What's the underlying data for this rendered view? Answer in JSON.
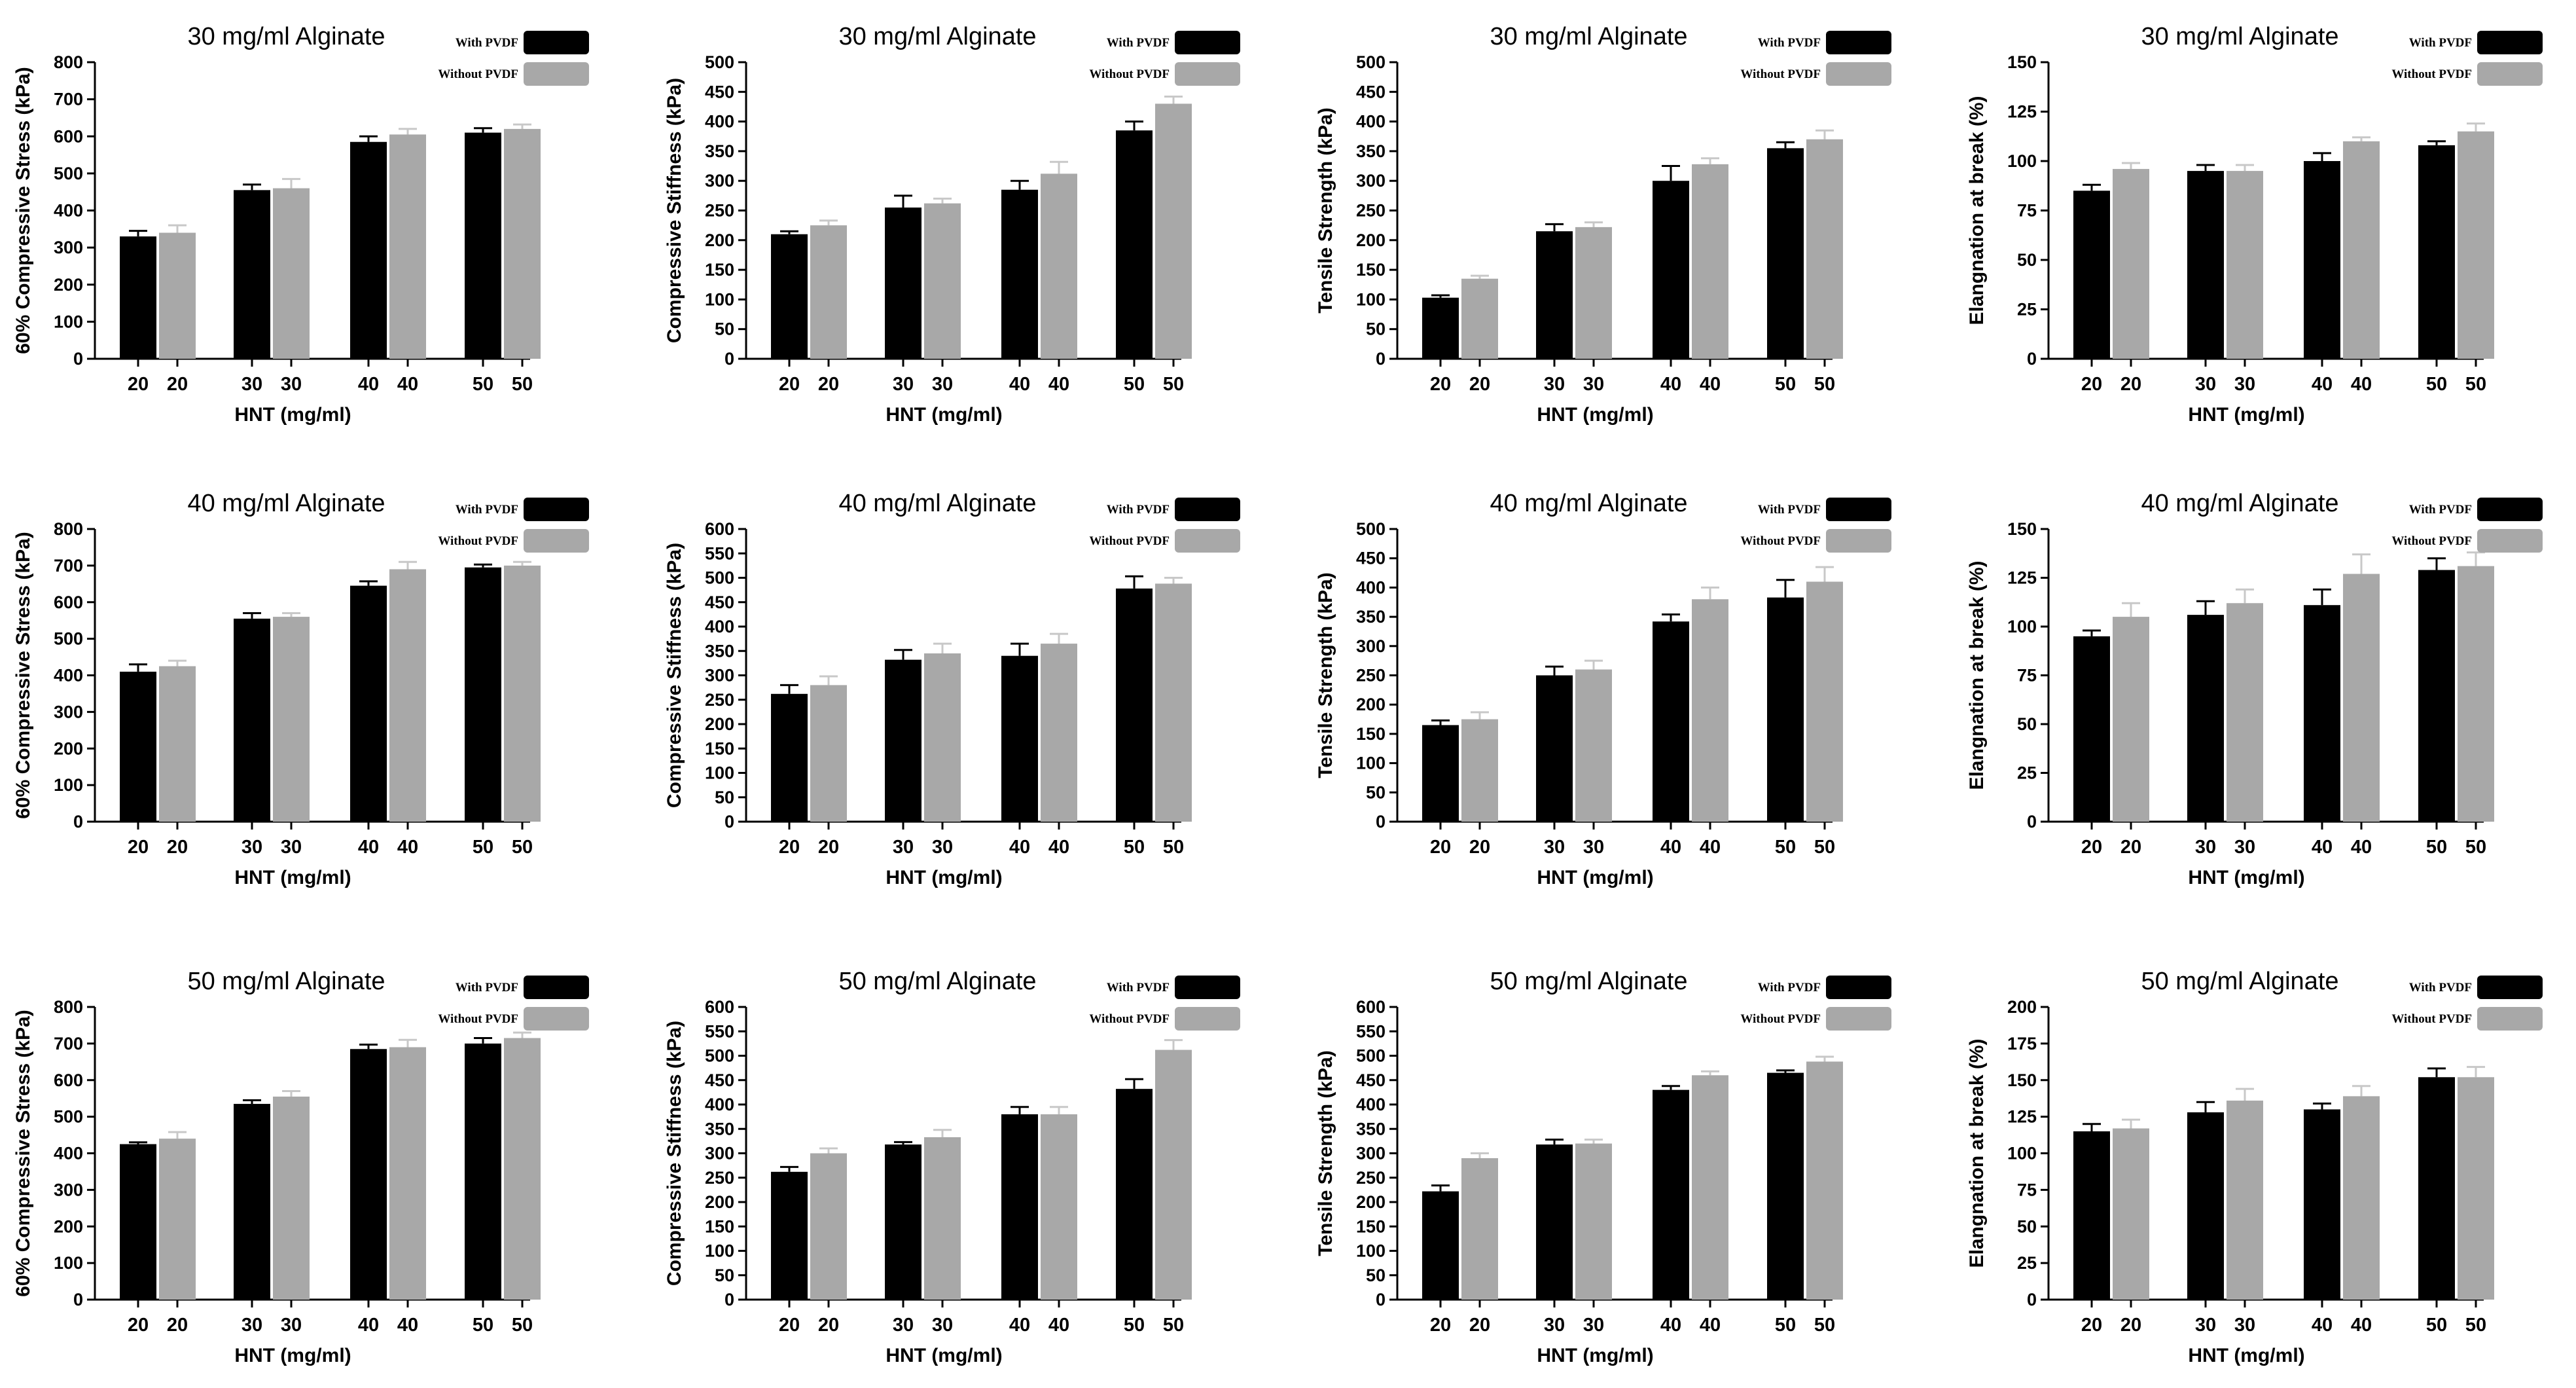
{
  "colors": {
    "with": "#000000",
    "without": "#a8a8a8",
    "axis": "#000000",
    "error_without": "#c8c8c8"
  },
  "chart_data": [
    {
      "type": "bar",
      "title": "30 mg/ml Alginate",
      "ylabel": "60% Compressive Stress (kPa)",
      "xlabel": "HNT (mg/ml)",
      "ylim": [
        0,
        800
      ],
      "ytick_step": 100,
      "yticks": [
        "0",
        "100",
        "200",
        "300",
        "400",
        "500",
        "600",
        "700",
        "800"
      ],
      "categories": [
        "20",
        "30",
        "40",
        "50"
      ],
      "xticks": [
        "20",
        "20",
        "30",
        "30",
        "40",
        "40",
        "50",
        "50"
      ],
      "series": [
        {
          "name": "With PVDF",
          "values": [
            330,
            455,
            585,
            610
          ],
          "errors": [
            15,
            15,
            15,
            12
          ]
        },
        {
          "name": "Without PVDF",
          "values": [
            340,
            460,
            605,
            620
          ],
          "errors": [
            20,
            25,
            15,
            12
          ]
        }
      ]
    },
    {
      "type": "bar",
      "title": "30 mg/ml Alginate",
      "ylabel": "Compressive Stiffness (kPa)",
      "xlabel": "HNT (mg/ml)",
      "ylim": [
        0,
        500
      ],
      "ytick_step": 50,
      "yticks": [
        "0",
        "50",
        "100",
        "150",
        "200",
        "250",
        "300",
        "350",
        "400",
        "450",
        "500"
      ],
      "categories": [
        "20",
        "30",
        "40",
        "50"
      ],
      "xticks": [
        "20",
        "20",
        "30",
        "30",
        "40",
        "40",
        "50",
        "50"
      ],
      "series": [
        {
          "name": "With PVDF",
          "values": [
            210,
            255,
            285,
            385
          ],
          "errors": [
            5,
            20,
            15,
            15
          ]
        },
        {
          "name": "Without PVDF",
          "values": [
            225,
            262,
            312,
            430
          ],
          "errors": [
            8,
            8,
            20,
            12
          ]
        }
      ]
    },
    {
      "type": "bar",
      "title": "30 mg/ml Alginate",
      "ylabel": "Tensile Strength (kPa)",
      "xlabel": "HNT (mg/ml)",
      "ylim": [
        0,
        500
      ],
      "ytick_step": 50,
      "yticks": [
        "0",
        "50",
        "100",
        "150",
        "200",
        "250",
        "300",
        "350",
        "400",
        "450",
        "500"
      ],
      "categories": [
        "20",
        "30",
        "40",
        "50"
      ],
      "xticks": [
        "20",
        "20",
        "30",
        "30",
        "40",
        "40",
        "50",
        "50"
      ],
      "series": [
        {
          "name": "With PVDF",
          "values": [
            103,
            215,
            300,
            355
          ],
          "errors": [
            4,
            12,
            25,
            10
          ]
        },
        {
          "name": "Without PVDF",
          "values": [
            135,
            222,
            328,
            370
          ],
          "errors": [
            5,
            8,
            10,
            15
          ]
        }
      ]
    },
    {
      "type": "bar",
      "title": "30 mg/ml Alginate",
      "ylabel": "Elangnation at break (%)",
      "xlabel": "HNT (mg/ml)",
      "ylim": [
        0,
        150
      ],
      "ytick_step": 25,
      "yticks": [
        "0",
        "25",
        "50",
        "75",
        "100",
        "125",
        "150"
      ],
      "categories": [
        "20",
        "30",
        "40",
        "50"
      ],
      "xticks": [
        "20",
        "20",
        "30",
        "30",
        "40",
        "40",
        "50",
        "50"
      ],
      "series": [
        {
          "name": "With PVDF",
          "values": [
            85,
            95,
            100,
            108
          ],
          "errors": [
            3,
            3,
            4,
            2
          ]
        },
        {
          "name": "Without PVDF",
          "values": [
            96,
            95,
            110,
            115
          ],
          "errors": [
            3,
            3,
            2,
            4
          ]
        }
      ]
    },
    {
      "type": "bar",
      "title": "40 mg/ml Alginate",
      "ylabel": "60% Compressive Stress (kPa)",
      "xlabel": "HNT (mg/ml)",
      "ylim": [
        0,
        800
      ],
      "ytick_step": 100,
      "yticks": [
        "0",
        "100",
        "200",
        "300",
        "400",
        "500",
        "600",
        "700",
        "800"
      ],
      "categories": [
        "20",
        "30",
        "40",
        "50"
      ],
      "xticks": [
        "20",
        "20",
        "30",
        "30",
        "40",
        "40",
        "50",
        "50"
      ],
      "series": [
        {
          "name": "With PVDF",
          "values": [
            410,
            555,
            645,
            695
          ],
          "errors": [
            20,
            15,
            12,
            8
          ]
        },
        {
          "name": "Without PVDF",
          "values": [
            425,
            560,
            690,
            700
          ],
          "errors": [
            15,
            10,
            20,
            10
          ]
        }
      ]
    },
    {
      "type": "bar",
      "title": "40 mg/ml Alginate",
      "ylabel": "Compressive Stiffness (kPa)",
      "xlabel": "HNT (mg/ml)",
      "ylim": [
        0,
        600
      ],
      "ytick_step": 50,
      "yticks": [
        "0",
        "50",
        "100",
        "150",
        "200",
        "250",
        "300",
        "350",
        "400",
        "450",
        "500",
        "550",
        "600"
      ],
      "categories": [
        "20",
        "30",
        "40",
        "50"
      ],
      "xticks": [
        "20",
        "20",
        "30",
        "30",
        "40",
        "40",
        "50",
        "50"
      ],
      "series": [
        {
          "name": "With PVDF",
          "values": [
            262,
            332,
            340,
            478
          ],
          "errors": [
            18,
            20,
            25,
            25
          ]
        },
        {
          "name": "Without PVDF",
          "values": [
            280,
            345,
            365,
            488
          ],
          "errors": [
            18,
            20,
            20,
            12
          ]
        }
      ]
    },
    {
      "type": "bar",
      "title": "40 mg/ml Alginate",
      "ylabel": "Tensile Strength (kPa)",
      "xlabel": "HNT (mg/ml)",
      "ylim": [
        0,
        500
      ],
      "ytick_step": 50,
      "yticks": [
        "0",
        "50",
        "100",
        "150",
        "200",
        "250",
        "300",
        "350",
        "400",
        "450",
        "500"
      ],
      "categories": [
        "20",
        "30",
        "40",
        "50"
      ],
      "xticks": [
        "20",
        "20",
        "30",
        "30",
        "40",
        "40",
        "50",
        "50"
      ],
      "series": [
        {
          "name": "With PVDF",
          "values": [
            165,
            250,
            342,
            383
          ],
          "errors": [
            8,
            15,
            12,
            30
          ]
        },
        {
          "name": "Without PVDF",
          "values": [
            175,
            260,
            380,
            410
          ],
          "errors": [
            12,
            15,
            20,
            25
          ]
        }
      ]
    },
    {
      "type": "bar",
      "title": "40 mg/ml Alginate",
      "ylabel": "Elangnation at break (%)",
      "xlabel": "HNT (mg/ml)",
      "ylim": [
        0,
        150
      ],
      "ytick_step": 25,
      "yticks": [
        "0",
        "25",
        "50",
        "75",
        "100",
        "125",
        "150"
      ],
      "categories": [
        "20",
        "30",
        "40",
        "50"
      ],
      "xticks": [
        "20",
        "20",
        "30",
        "30",
        "40",
        "40",
        "50",
        "50"
      ],
      "series": [
        {
          "name": "With PVDF",
          "values": [
            95,
            106,
            111,
            129
          ],
          "errors": [
            3,
            7,
            8,
            6
          ]
        },
        {
          "name": "Without PVDF",
          "values": [
            105,
            112,
            127,
            131
          ],
          "errors": [
            7,
            7,
            10,
            7
          ]
        }
      ]
    },
    {
      "type": "bar",
      "title": "50 mg/ml Alginate",
      "ylabel": "60% Compressive Stress (kPa)",
      "xlabel": "HNT (mg/ml)",
      "ylim": [
        0,
        800
      ],
      "ytick_step": 100,
      "yticks": [
        "0",
        "100",
        "200",
        "300",
        "400",
        "500",
        "600",
        "700",
        "800"
      ],
      "categories": [
        "20",
        "30",
        "40",
        "50"
      ],
      "xticks": [
        "20",
        "20",
        "30",
        "30",
        "40",
        "40",
        "50",
        "50"
      ],
      "series": [
        {
          "name": "With PVDF",
          "values": [
            425,
            535,
            685,
            700
          ],
          "errors": [
            5,
            10,
            12,
            15
          ]
        },
        {
          "name": "Without PVDF",
          "values": [
            440,
            555,
            690,
            715
          ],
          "errors": [
            18,
            15,
            20,
            15
          ]
        }
      ]
    },
    {
      "type": "bar",
      "title": "50 mg/ml Alginate",
      "ylabel": "Compressive Stiffness (kPa)",
      "xlabel": "HNT (mg/ml)",
      "ylim": [
        0,
        600
      ],
      "ytick_step": 50,
      "yticks": [
        "0",
        "50",
        "100",
        "150",
        "200",
        "250",
        "300",
        "350",
        "400",
        "450",
        "500",
        "550",
        "600"
      ],
      "categories": [
        "20",
        "30",
        "40",
        "50"
      ],
      "xticks": [
        "20",
        "20",
        "30",
        "30",
        "40",
        "40",
        "50",
        "50"
      ],
      "series": [
        {
          "name": "With PVDF",
          "values": [
            262,
            318,
            380,
            432
          ],
          "errors": [
            10,
            5,
            15,
            20
          ]
        },
        {
          "name": "Without PVDF",
          "values": [
            300,
            333,
            380,
            512
          ],
          "errors": [
            10,
            15,
            15,
            20
          ]
        }
      ]
    },
    {
      "type": "bar",
      "title": "50 mg/ml Alginate",
      "ylabel": "Tensile Strength (kPa)",
      "xlabel": "HNT (mg/ml)",
      "ylim": [
        0,
        600
      ],
      "ytick_step": 50,
      "yticks": [
        "0",
        "50",
        "100",
        "150",
        "200",
        "250",
        "300",
        "350",
        "400",
        "450",
        "500",
        "550",
        "600"
      ],
      "categories": [
        "20",
        "30",
        "40",
        "50"
      ],
      "xticks": [
        "20",
        "20",
        "30",
        "30",
        "40",
        "40",
        "50",
        "50"
      ],
      "series": [
        {
          "name": "With PVDF",
          "values": [
            222,
            318,
            430,
            465
          ],
          "errors": [
            12,
            10,
            8,
            5
          ]
        },
        {
          "name": "Without PVDF",
          "values": [
            290,
            320,
            460,
            488
          ],
          "errors": [
            10,
            8,
            8,
            10
          ]
        }
      ]
    },
    {
      "type": "bar",
      "title": "50 mg/ml Alginate",
      "ylabel": "Elangnation at break (%)",
      "xlabel": "HNT (mg/ml)",
      "ylim": [
        0,
        200
      ],
      "ytick_step": 25,
      "yticks": [
        "0",
        "25",
        "50",
        "75",
        "100",
        "125",
        "150",
        "175",
        "200"
      ],
      "categories": [
        "20",
        "30",
        "40",
        "50"
      ],
      "xticks": [
        "20",
        "20",
        "30",
        "30",
        "40",
        "40",
        "50",
        "50"
      ],
      "series": [
        {
          "name": "With PVDF",
          "values": [
            115,
            128,
            130,
            152
          ],
          "errors": [
            5,
            7,
            4,
            6
          ]
        },
        {
          "name": "Without PVDF",
          "values": [
            117,
            136,
            139,
            152
          ],
          "errors": [
            6,
            8,
            7,
            7
          ]
        }
      ]
    }
  ]
}
